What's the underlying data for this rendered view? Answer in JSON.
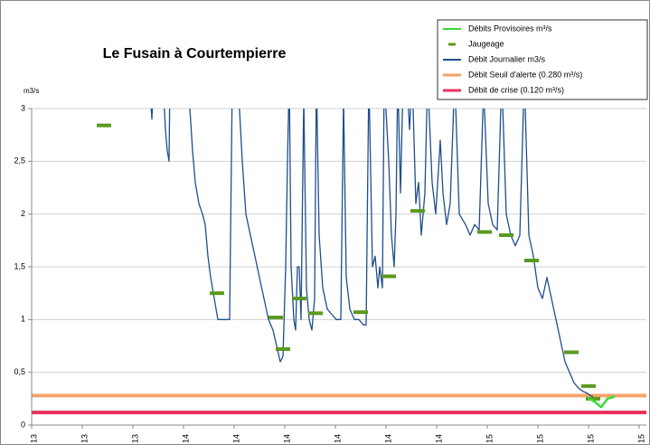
{
  "chart_data": {
    "type": "line",
    "title": "Le Fusain à Courtempierre",
    "y_label": "m3/s",
    "xlim": [
      0,
      680
    ],
    "xticks": [
      {
        "value": 0,
        "label": "13"
      },
      {
        "value": 56,
        "label": "13"
      },
      {
        "value": 112,
        "label": "13"
      },
      {
        "value": 168,
        "label": "14"
      },
      {
        "value": 224,
        "label": "14"
      },
      {
        "value": 280,
        "label": "14"
      },
      {
        "value": 336,
        "label": "14"
      },
      {
        "value": 392,
        "label": "14"
      },
      {
        "value": 448,
        "label": "14"
      },
      {
        "value": 504,
        "label": "15"
      },
      {
        "value": 560,
        "label": "15"
      },
      {
        "value": 616,
        "label": "15"
      },
      {
        "value": 672,
        "label": "15"
      }
    ],
    "ylim": [
      0,
      3
    ],
    "yticks": [
      0,
      {
        "value": 0.5,
        "label": "0,5"
      },
      1,
      {
        "value": 1.5,
        "label": "1,5"
      },
      2,
      {
        "value": 2.5,
        "label": "2,5"
      },
      3
    ],
    "grid": true,
    "legend": "top-right",
    "series": [
      {
        "name": "Débits Provisoires m³/s",
        "color": "#33dd33",
        "style": "line",
        "x": [
          615,
          623,
          630,
          637,
          645
        ],
        "values": [
          0.26,
          0.22,
          0.17,
          0.25,
          0.27
        ]
      },
      {
        "name": "Jaugeage",
        "color": "#5a9a1e",
        "style": "dash",
        "x": [
          80,
          205,
          270,
          278,
          296,
          314,
          364,
          395,
          427,
          501,
          525,
          553,
          597,
          616,
          621
        ],
        "values": [
          2.84,
          1.25,
          1.02,
          0.72,
          1.2,
          1.06,
          1.07,
          1.41,
          2.03,
          1.83,
          1.8,
          1.56,
          0.69,
          0.37,
          0.25
        ]
      },
      {
        "name": "Débit Journalier m3/s",
        "color": "#1f4e8c",
        "style": "line",
        "x": [
          130,
          133,
          135,
          145,
          148,
          150,
          152,
          153,
          170,
          175,
          178,
          181,
          185,
          189,
          192,
          195,
          198,
          202,
          206,
          210,
          215,
          219,
          222,
          228,
          233,
          237,
          242,
          247,
          252,
          257,
          262,
          267,
          271,
          275,
          278,
          281,
          283,
          285,
          287,
          290,
          292,
          294,
          296,
          298,
          301,
          304,
          307,
          310,
          313,
          315,
          318,
          322,
          327,
          332,
          337,
          342,
          345,
          348,
          352,
          357,
          362,
          367,
          370,
          373,
          377,
          380,
          383,
          385,
          388,
          390,
          395,
          398,
          401,
          403,
          405,
          408,
          411,
          415,
          418,
          421,
          425,
          428,
          431,
          435,
          438,
          443,
          447,
          452,
          455,
          459,
          463,
          468,
          473,
          480,
          485,
          490,
          495,
          500,
          505,
          510,
          515,
          520,
          525,
          530,
          535,
          540,
          545,
          550,
          555,
          560,
          565,
          570,
          575,
          580,
          585,
          590,
          595,
          600,
          605,
          610,
          615,
          618,
          621
        ],
        "values": [
          3.3,
          2.9,
          3.3,
          3.3,
          2.8,
          2.6,
          2.5,
          3.3,
          3.3,
          3.0,
          2.6,
          2.3,
          2.1,
          2.0,
          1.9,
          1.6,
          1.4,
          1.2,
          1.0,
          1.0,
          1.0,
          1.0,
          3.3,
          3.3,
          2.5,
          2.0,
          1.8,
          1.6,
          1.4,
          1.2,
          1.0,
          0.9,
          0.75,
          0.6,
          0.65,
          1.5,
          2.5,
          3.3,
          1.5,
          1.0,
          0.9,
          1.5,
          1.5,
          1.0,
          3.1,
          1.3,
          1.0,
          0.9,
          1.2,
          3.3,
          1.8,
          1.3,
          1.1,
          1.05,
          1.0,
          1.0,
          3.1,
          1.4,
          1.1,
          1.0,
          1.0,
          0.95,
          0.95,
          3.3,
          1.5,
          1.6,
          1.3,
          1.5,
          1.3,
          3.3,
          2.5,
          1.8,
          1.5,
          2.0,
          3.3,
          2.2,
          3.3,
          3.3,
          2.8,
          3.3,
          2.1,
          2.3,
          1.8,
          2.2,
          3.3,
          2.3,
          2.0,
          2.7,
          2.2,
          1.9,
          2.1,
          3.3,
          2.0,
          1.9,
          1.8,
          1.9,
          1.85,
          3.2,
          2.1,
          1.9,
          1.85,
          3.3,
          2.0,
          1.8,
          1.7,
          1.8,
          3.3,
          1.8,
          1.6,
          1.3,
          1.2,
          1.4,
          1.2,
          1.0,
          0.8,
          0.6,
          0.5,
          0.4,
          0.35,
          0.32,
          0.3,
          0.28,
          0.27
        ]
      },
      {
        "name": "Débit Seuil d'alerte (0.280 m³/s)",
        "color": "#f4a46a",
        "style": "hline",
        "values": [
          0.28
        ]
      },
      {
        "name": "Débit de crise (0.120 m³/s)",
        "color": "#e8335e",
        "style": "hline",
        "values": [
          0.12
        ]
      }
    ]
  }
}
